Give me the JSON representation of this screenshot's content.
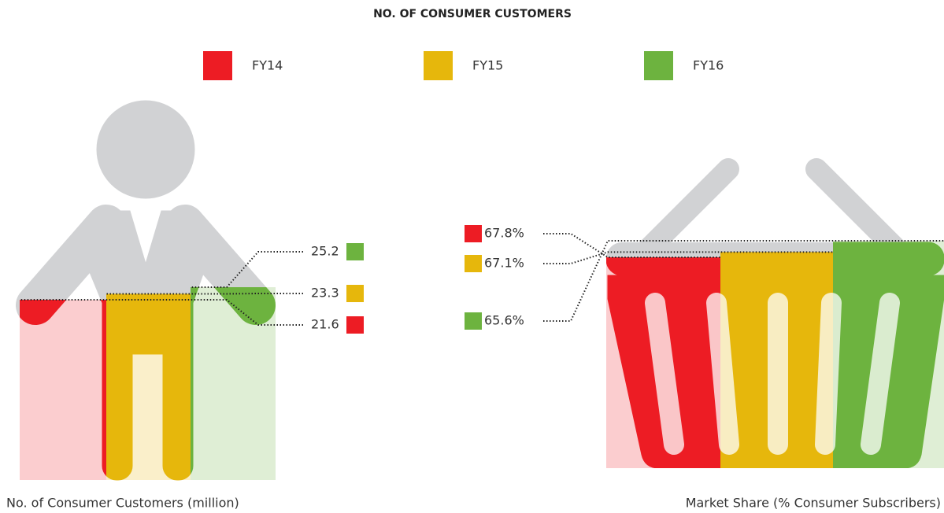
{
  "title": "NO. OF CONSUMER CUSTOMERS",
  "chart_data": [
    {
      "type": "pictogram-person",
      "label": "No. of Consumer Customers (million)",
      "series": [
        {
          "name": "FY14",
          "color": "#ed1c24",
          "values": [
            21.6
          ]
        },
        {
          "name": "FY15",
          "color": "#e6b70c",
          "values": [
            23.3
          ]
        },
        {
          "name": "FY16",
          "color": "#6db33f",
          "values": [
            25.2
          ]
        }
      ]
    },
    {
      "type": "pictogram-basket",
      "label": "Market Share (% Consumer Subscribers)",
      "series": [
        {
          "name": "FY14",
          "color": "#ed1c24",
          "values": [
            67.8
          ],
          "value_labels": [
            "67.8%"
          ]
        },
        {
          "name": "FY15",
          "color": "#e6b70c",
          "values": [
            67.1
          ],
          "value_labels": [
            "67.1%"
          ]
        },
        {
          "name": "FY16",
          "color": "#6db33f",
          "values": [
            65.6
          ],
          "value_labels": [
            "65.6%"
          ]
        }
      ]
    }
  ]
}
